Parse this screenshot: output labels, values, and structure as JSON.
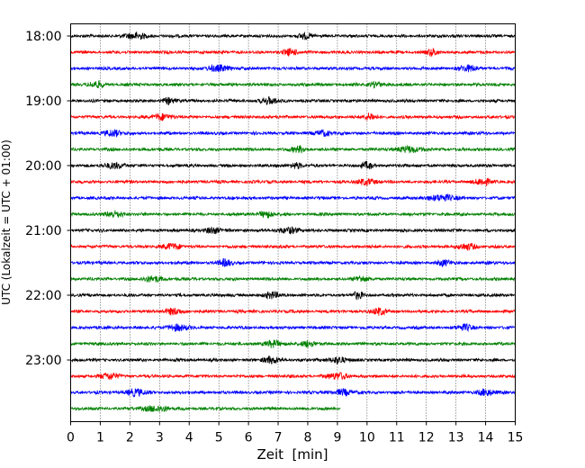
{
  "chart_data": {
    "type": "line",
    "subtype": "helicorder",
    "xlabel": "Zeit  [min]",
    "ylabel": "UTC (Lokalzeit = UTC + 01:00)",
    "xlim": [
      0,
      15
    ],
    "x_ticks": [
      0,
      1,
      2,
      3,
      4,
      5,
      6,
      7,
      8,
      9,
      10,
      11,
      12,
      13,
      14,
      15
    ],
    "y_tick_labels": [
      "18:00",
      "19:00",
      "20:00",
      "21:00",
      "22:00",
      "23:00"
    ],
    "trace_minutes": 15,
    "traces_per_hour": 4,
    "start_time": "18:00",
    "trace_count": 24,
    "last_trace_end_min": 9.1,
    "trace_colors": [
      "#000000",
      "#ff0000",
      "#0000ff",
      "#008000"
    ],
    "vertical_grid": true,
    "grid_style": "dotted",
    "event_bursts_min": [
      [
        [
          2.2,
          0.35
        ],
        [
          7.9,
          0.2
        ]
      ],
      [
        [
          7.4,
          0.25
        ],
        [
          12.2,
          0.2
        ]
      ],
      [
        [
          5.0,
          0.35
        ],
        [
          13.4,
          0.3
        ]
      ],
      [
        [
          0.9,
          0.25
        ],
        [
          10.3,
          0.2
        ]
      ],
      [
        [
          6.7,
          0.3
        ],
        [
          3.3,
          0.2
        ]
      ],
      [
        [
          3.1,
          0.3
        ],
        [
          10.1,
          0.2
        ]
      ],
      [
        [
          1.4,
          0.3
        ],
        [
          8.5,
          0.25
        ]
      ],
      [
        [
          7.7,
          0.25
        ],
        [
          11.4,
          0.4
        ]
      ],
      [
        [
          1.5,
          0.3
        ],
        [
          7.6,
          0.2
        ],
        [
          10.0,
          0.2
        ]
      ],
      [
        [
          10.0,
          0.3
        ],
        [
          13.9,
          0.3
        ]
      ],
      [
        [
          12.5,
          0.45
        ]
      ],
      [
        [
          1.5,
          0.3
        ],
        [
          6.6,
          0.25
        ]
      ],
      [
        [
          7.4,
          0.3
        ],
        [
          4.8,
          0.25
        ]
      ],
      [
        [
          3.4,
          0.3
        ],
        [
          13.4,
          0.3
        ]
      ],
      [
        [
          5.2,
          0.25
        ],
        [
          12.6,
          0.2
        ]
      ],
      [
        [
          2.8,
          0.3
        ],
        [
          9.8,
          0.2
        ]
      ],
      [
        [
          6.8,
          0.25
        ],
        [
          9.7,
          0.2
        ]
      ],
      [
        [
          3.5,
          0.3
        ],
        [
          10.4,
          0.25
        ]
      ],
      [
        [
          3.6,
          0.35
        ],
        [
          13.3,
          0.25
        ]
      ],
      [
        [
          6.8,
          0.3
        ],
        [
          8.0,
          0.25
        ]
      ],
      [
        [
          6.8,
          0.3
        ],
        [
          9.0,
          0.3
        ]
      ],
      [
        [
          1.3,
          0.3
        ],
        [
          9.0,
          0.35
        ]
      ],
      [
        [
          2.2,
          0.35
        ],
        [
          9.2,
          0.3
        ],
        [
          14.0,
          0.3
        ]
      ],
      [
        [
          2.9,
          0.4
        ]
      ]
    ]
  }
}
